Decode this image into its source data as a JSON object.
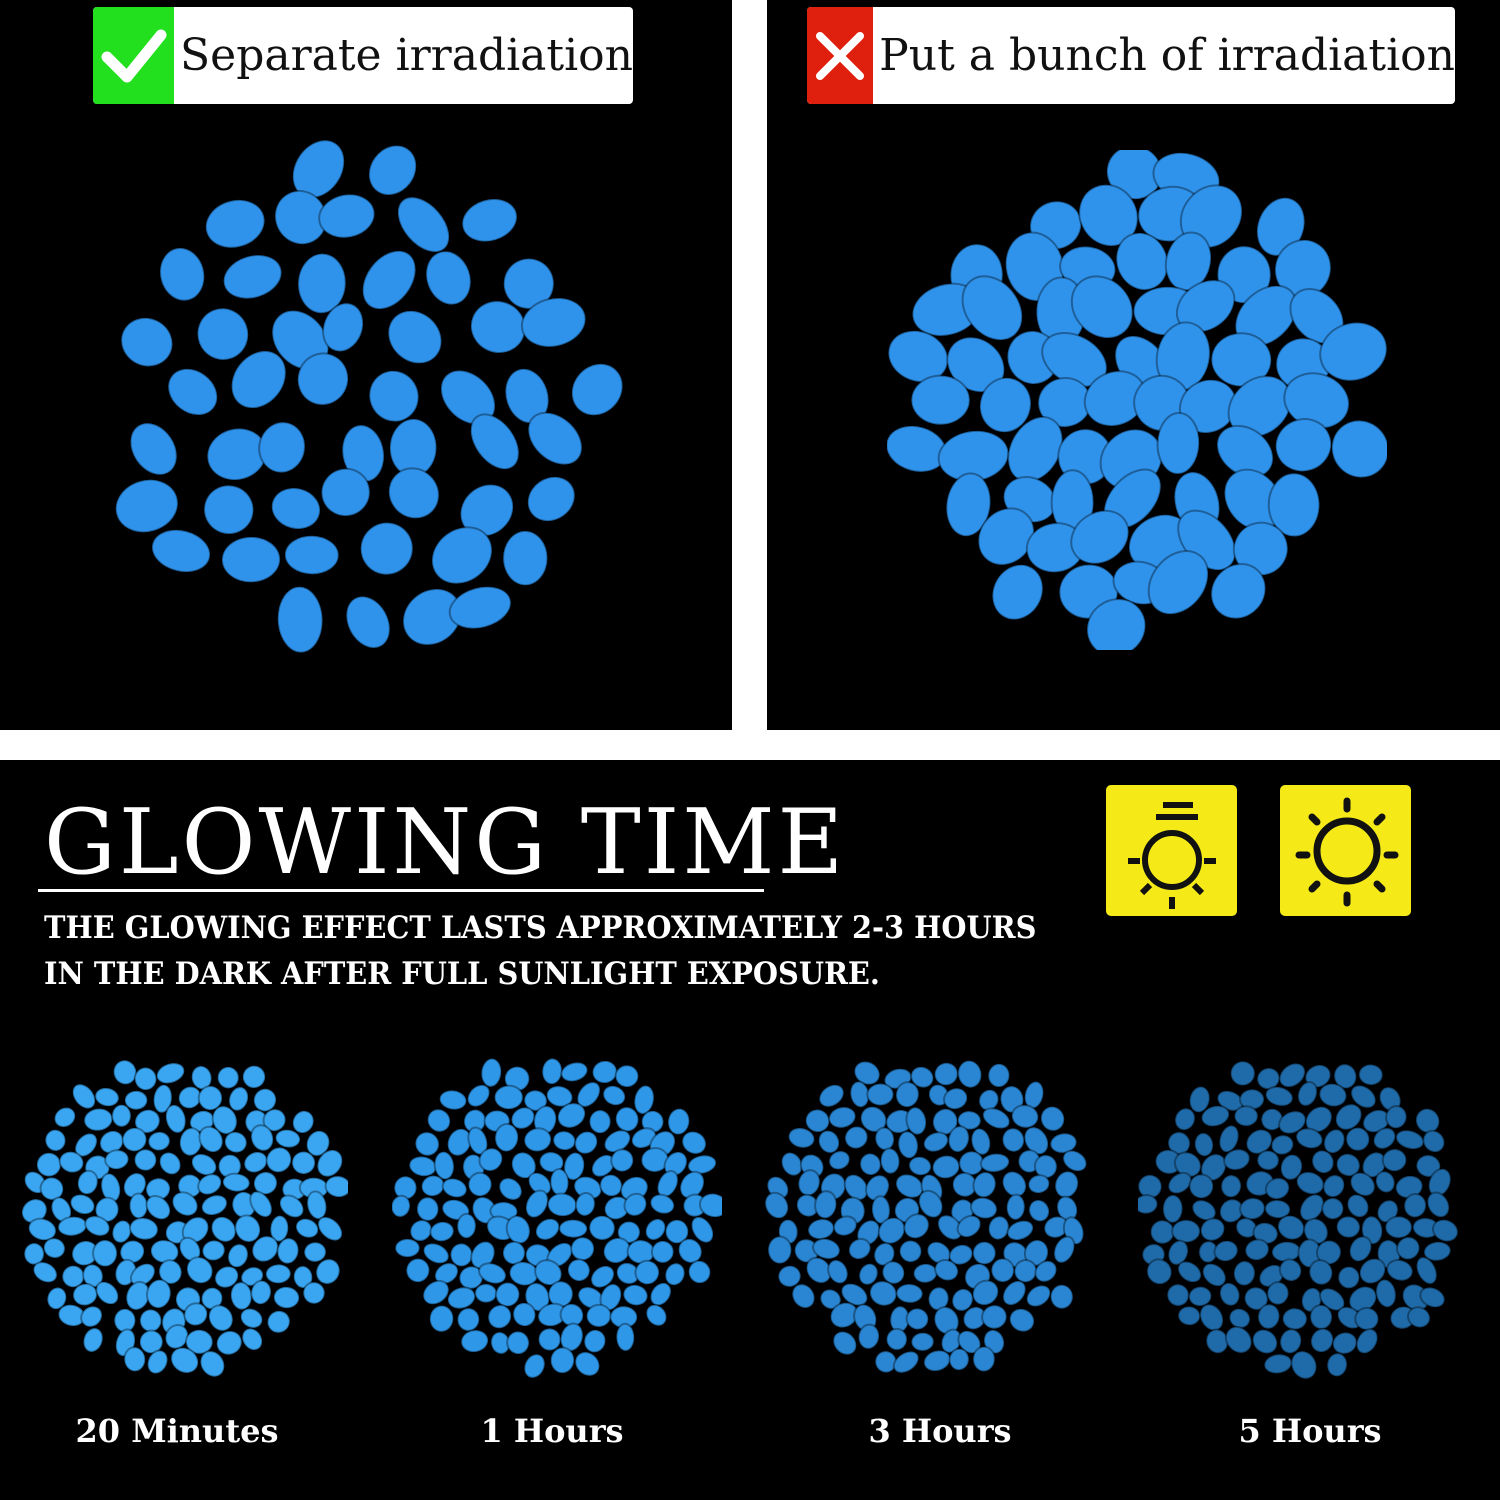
{
  "comparison": {
    "good": {
      "icon": "check-icon",
      "label": "Separate irradiation",
      "color": "#22e01e"
    },
    "bad": {
      "icon": "x-icon",
      "label": "Put a bunch of irradiation",
      "color": "#e0200f"
    }
  },
  "glowing": {
    "title": "GLOWING TIME",
    "subtitle_line1": "THE GLOWING EFFECT LASTS APPROXIMATELY 2-3 HOURS",
    "subtitle_line2": "IN THE DARK AFTER FULL SUNLIGHT EXPOSURE.",
    "icons": [
      "lamp-light-icon",
      "sun-icon"
    ],
    "icon_color": "#f5ea18",
    "stages": [
      {
        "label": "20 Minutes",
        "color": "#3aa6f2"
      },
      {
        "label": "1 Hours",
        "color": "#2f97e8"
      },
      {
        "label": "3 Hours",
        "color": "#2a86d2"
      },
      {
        "label": "5 Hours",
        "color": "#1f6aa8"
      }
    ]
  },
  "pebble_color": "#2f93ec"
}
